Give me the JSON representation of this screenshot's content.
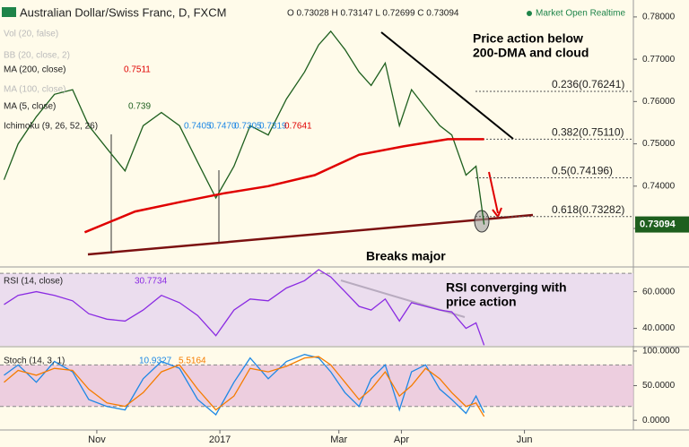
{
  "chart_data": [
    {
      "type": "line",
      "title": "Australian Dollar/Swiss Franc, D, FXCM",
      "ohlc": "O 0.73028 H 0.73147 L 0.72699 C 0.73094",
      "status": "Market Open Realtime",
      "indicators": [
        {
          "label": "Vol (20, false)",
          "hidden": true
        },
        {
          "label": "BB (20, close, 2)",
          "hidden": true
        },
        {
          "label": "MA (200, close)",
          "values_text": [
            "0.7511"
          ]
        },
        {
          "label": "MA (100, close)",
          "hidden": true
        },
        {
          "label": "MA (5, close)",
          "values_text": [
            "0.739"
          ]
        },
        {
          "label": "Ichimoku (9, 26, 52, 26)",
          "values_text": [
            "0.7405",
            "0.7470",
            "0.7305",
            "0.7319",
            "0.7641"
          ]
        }
      ],
      "xlim": [
        -48,
        266
      ],
      "ylim": [
        0.7209,
        0.784
      ],
      "yticks": [
        {
          "value": 0.73,
          "label": "0.73000"
        },
        {
          "value": 0.74,
          "label": "0.74000"
        },
        {
          "value": 0.75,
          "label": "0.75000"
        },
        {
          "value": 0.76,
          "label": "0.76000"
        },
        {
          "value": 0.77,
          "label": "0.77000"
        },
        {
          "value": 0.78,
          "label": "0.78000"
        }
      ],
      "series": [
        {
          "color": "#1e5f1e",
          "x": [
            -46,
            -39,
            -30,
            -21,
            -12,
            -4,
            5,
            14,
            23,
            32,
            41,
            50,
            59,
            68,
            76,
            85,
            94,
            103,
            110,
            116,
            123,
            130,
            136,
            143,
            150,
            156,
            163,
            170,
            176,
            183,
            188,
            192
          ],
          "values": [
            0.7415,
            0.75,
            0.7564,
            0.7617,
            0.7628,
            0.7543,
            0.7489,
            0.7436,
            0.7543,
            0.7574,
            0.7543,
            0.7457,
            0.7372,
            0.7447,
            0.7543,
            0.7521,
            0.7606,
            0.767,
            0.7734,
            0.7766,
            0.7723,
            0.767,
            0.7638,
            0.7691,
            0.7543,
            0.7628,
            0.7585,
            0.7543,
            0.7521,
            0.7426,
            0.7447,
            0.73094
          ]
        },
        {
          "name": "MA (200, close)",
          "color": "#e00000",
          "x": [
            -6,
            19,
            41,
            63,
            85,
            108,
            130,
            152,
            174,
            192
          ],
          "values": [
            0.7291,
            0.734,
            0.7362,
            0.7383,
            0.74,
            0.7426,
            0.7474,
            0.7494,
            0.7511,
            0.7511
          ]
        }
      ],
      "fib_levels": [
        {
          "value": 0.76241,
          "label": "0.236(0.76241)"
        },
        {
          "value": 0.7511,
          "label": "0.382(0.75110)"
        },
        {
          "value": 0.74196,
          "label": "0.5(0.74196)"
        },
        {
          "value": 0.73282,
          "label": "0.618(0.73282)"
        }
      ],
      "annotations": [
        "Price action below",
        "200-DMA and cloud",
        "Breaks major"
      ]
    },
    {
      "type": "line",
      "title": "RSI (14, close)",
      "xlim": [
        -48,
        266
      ],
      "ylim": [
        30.5,
        73
      ],
      "band": [
        30,
        70
      ],
      "yticks": [
        {
          "value": 40,
          "label": "40.0000"
        },
        {
          "value": 60,
          "label": "60.0000"
        }
      ],
      "series": [
        {
          "color": "#8a2be2",
          "x": [
            -46,
            -39,
            -30,
            -21,
            -12,
            -4,
            5,
            14,
            23,
            32,
            41,
            50,
            59,
            68,
            76,
            85,
            94,
            103,
            110,
            116,
            123,
            130,
            136,
            143,
            150,
            156,
            163,
            170,
            176,
            183,
            188,
            192
          ],
          "values": [
            53,
            58,
            60,
            58,
            55,
            48,
            45,
            44,
            50,
            58,
            54,
            47,
            36,
            50,
            56,
            55,
            62,
            66,
            72,
            68,
            60,
            52,
            50,
            56,
            44,
            54,
            52,
            50,
            49,
            40,
            43,
            30.7734
          ]
        }
      ],
      "annotations": [
        "RSI converging with",
        "price action"
      ]
    },
    {
      "type": "line",
      "title": "Stoch (14, 3, 1)",
      "xlim": [
        -48,
        266
      ],
      "ylim": [
        -14,
        105
      ],
      "band": [
        20,
        80
      ],
      "yticks": [
        {
          "value": 0,
          "label": "0.0000"
        },
        {
          "value": 50,
          "label": "50.0000"
        },
        {
          "value": 100,
          "label": "100.0000"
        }
      ],
      "xticks": [
        {
          "value": 0,
          "label": "Nov"
        },
        {
          "value": 61,
          "label": "2017"
        },
        {
          "value": 120,
          "label": "Mar"
        },
        {
          "value": 151,
          "label": "Apr"
        },
        {
          "value": 212,
          "label": "Jun"
        }
      ],
      "series": [
        {
          "color": "#1e88e5",
          "x": [
            -46,
            -39,
            -30,
            -21,
            -12,
            -4,
            5,
            14,
            23,
            32,
            41,
            50,
            59,
            68,
            76,
            85,
            94,
            103,
            110,
            116,
            123,
            130,
            136,
            143,
            150,
            156,
            163,
            170,
            176,
            183,
            188,
            192
          ],
          "values": [
            65,
            80,
            55,
            85,
            70,
            30,
            20,
            15,
            60,
            85,
            75,
            30,
            8,
            55,
            90,
            60,
            85,
            95,
            90,
            70,
            40,
            20,
            60,
            80,
            15,
            70,
            80,
            45,
            30,
            10,
            35,
            10.9327
          ]
        },
        {
          "color": "#f57c00",
          "x": [
            -46,
            -39,
            -30,
            -21,
            -12,
            -4,
            5,
            14,
            23,
            32,
            41,
            50,
            59,
            68,
            76,
            85,
            94,
            103,
            110,
            116,
            123,
            130,
            136,
            143,
            150,
            156,
            163,
            170,
            176,
            183,
            188,
            192
          ],
          "values": [
            55,
            72,
            65,
            75,
            72,
            45,
            25,
            20,
            40,
            70,
            80,
            45,
            15,
            35,
            75,
            70,
            78,
            90,
            92,
            80,
            55,
            30,
            45,
            70,
            35,
            50,
            75,
            60,
            40,
            20,
            25,
            5.5164
          ]
        }
      ]
    }
  ]
}
